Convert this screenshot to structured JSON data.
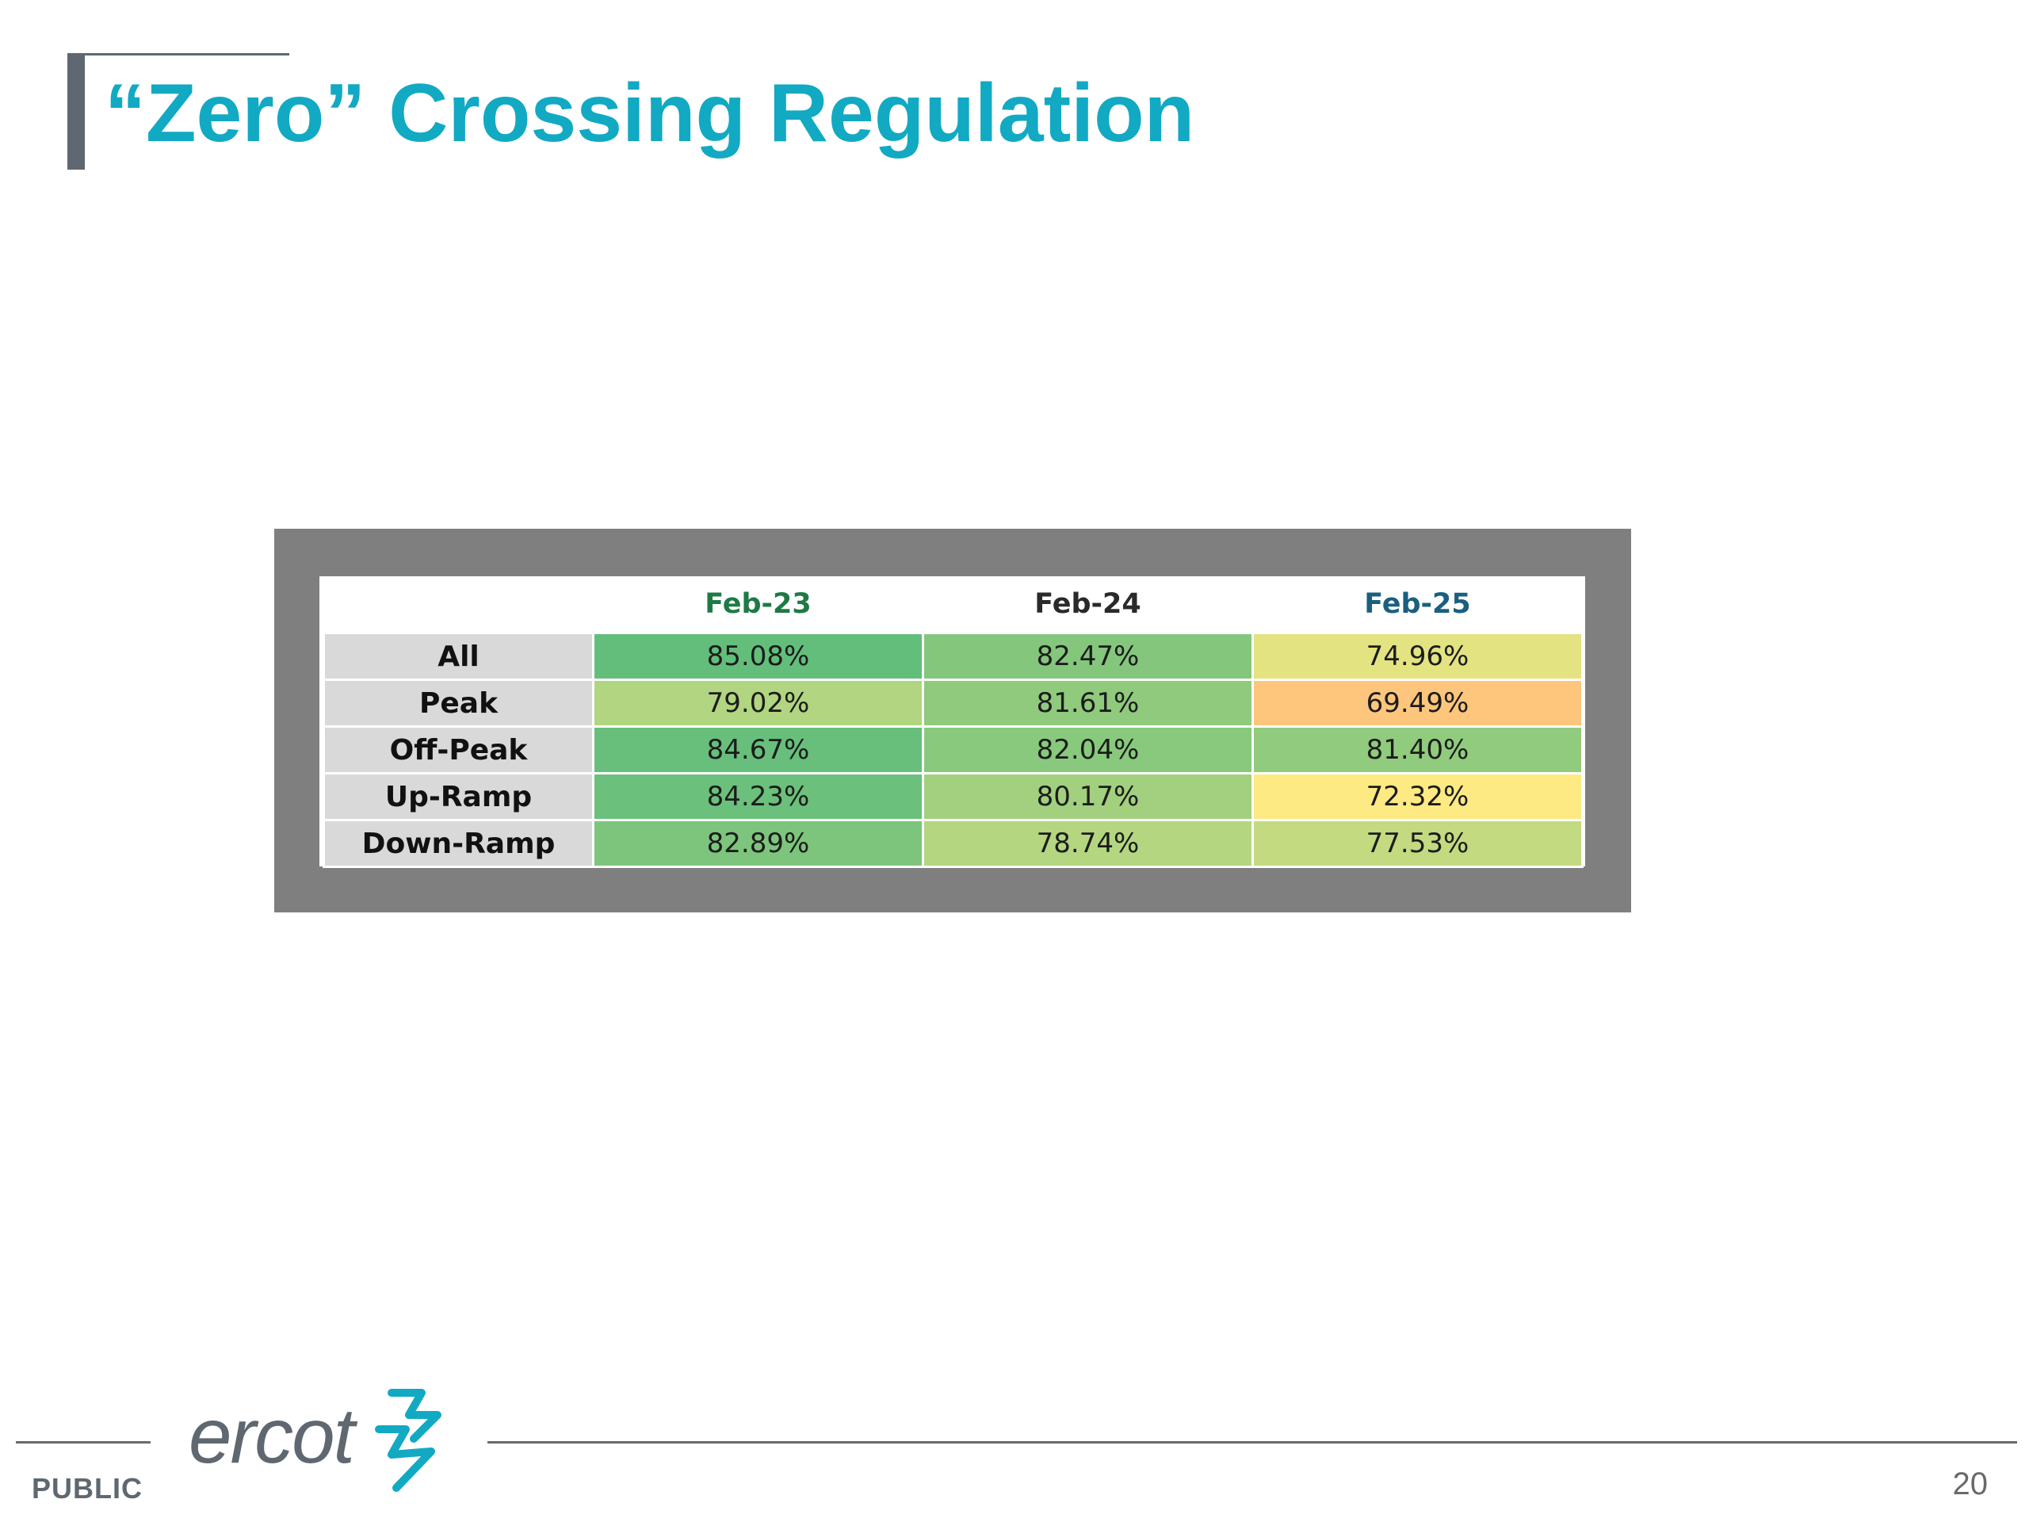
{
  "slide": {
    "title": "“Zero” Crossing Regulation",
    "page_number": "20",
    "classification": "PUBLIC",
    "logo_text": "ercot"
  },
  "table": {
    "columns": [
      {
        "label": "Feb-23",
        "color": "#1e7a45"
      },
      {
        "label": "Feb-24",
        "color": "#2a2a2a"
      },
      {
        "label": "Feb-25",
        "color": "#1b5f80"
      }
    ],
    "rows": [
      {
        "label": "All",
        "cells": [
          {
            "value": "85.08%",
            "bg": "#63be7b"
          },
          {
            "value": "82.47%",
            "bg": "#84c77c"
          },
          {
            "value": "74.96%",
            "bg": "#e3e382"
          }
        ]
      },
      {
        "label": "Peak",
        "cells": [
          {
            "value": "79.02%",
            "bg": "#b1d580"
          },
          {
            "value": "81.61%",
            "bg": "#8fca7d"
          },
          {
            "value": "69.49%",
            "bg": "#fdc67c"
          }
        ]
      },
      {
        "label": "Off-Peak",
        "cells": [
          {
            "value": "84.67%",
            "bg": "#67bf7b"
          },
          {
            "value": "82.04%",
            "bg": "#89c97d"
          },
          {
            "value": "81.40%",
            "bg": "#91cb7d"
          }
        ]
      },
      {
        "label": "Up-Ramp",
        "cells": [
          {
            "value": "84.23%",
            "bg": "#6bc07b"
          },
          {
            "value": "80.17%",
            "bg": "#a2d07f"
          },
          {
            "value": "72.32%",
            "bg": "#feea83"
          }
        ]
      },
      {
        "label": "Down-Ramp",
        "cells": [
          {
            "value": "82.89%",
            "bg": "#7dc57c"
          },
          {
            "value": "78.74%",
            "bg": "#b4d680"
          },
          {
            "value": "77.53%",
            "bg": "#c3da81"
          }
        ]
      }
    ]
  },
  "colors": {
    "title": "#12a9c3",
    "frame": "#7f7f7f",
    "row_label_bg": "#d9d9d9",
    "logo_gray": "#5f6870",
    "logo_accent": "#12a9c3"
  }
}
